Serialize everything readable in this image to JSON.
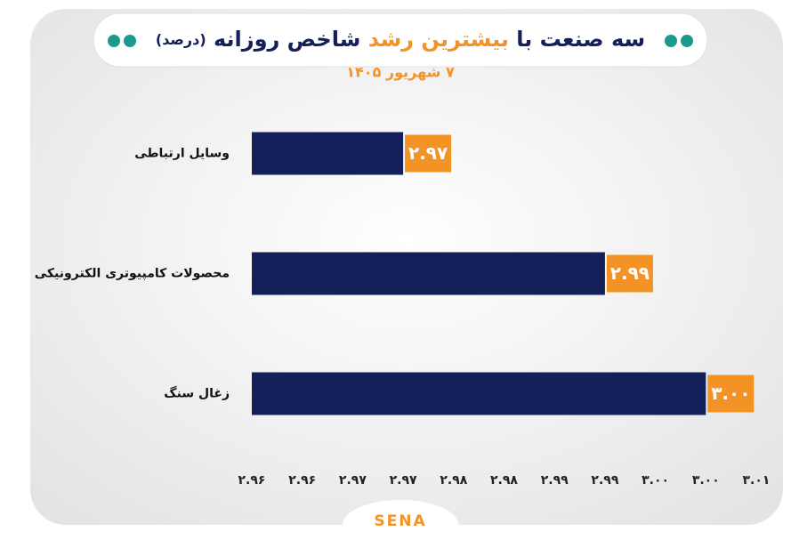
{
  "chart_data": {
    "type": "bar",
    "orientation": "horizontal",
    "title": [
      "سه صنعت با",
      "بیشترین رشد",
      "شاخص روزانه",
      "(درصد)"
    ],
    "subtitle": "۷ شهریور ۱۴۰۵",
    "categories": [
      "وسایل ارتباطی",
      "محصولات کامپیوتری الکترونیکی",
      "زغال سنگ"
    ],
    "values": [
      2.97,
      2.99,
      3.0
    ],
    "value_labels": [
      "۲.۹۷",
      "۲.۹۹",
      "۳.۰۰"
    ],
    "color": "#14205a",
    "label_color": "#f39325",
    "xlim": [
      2.955,
      3.005
    ],
    "xticks": [
      {
        "value": 2.955,
        "label": "۲.۹۶"
      },
      {
        "value": 2.96,
        "label": "۲.۹۶"
      },
      {
        "value": 2.965,
        "label": "۲.۹۷"
      },
      {
        "value": 2.97,
        "label": "۲.۹۷"
      },
      {
        "value": 2.975,
        "label": "۲.۹۸"
      },
      {
        "value": 2.98,
        "label": "۲.۹۸"
      },
      {
        "value": 2.985,
        "label": "۲.۹۹"
      },
      {
        "value": 2.99,
        "label": "۲.۹۹"
      },
      {
        "value": 2.995,
        "label": "۳.۰۰"
      },
      {
        "value": 3.0,
        "label": "۳.۰۰"
      },
      {
        "value": 3.005,
        "label": "۳.۰۱"
      }
    ],
    "grid": false,
    "logo": "SENA"
  }
}
